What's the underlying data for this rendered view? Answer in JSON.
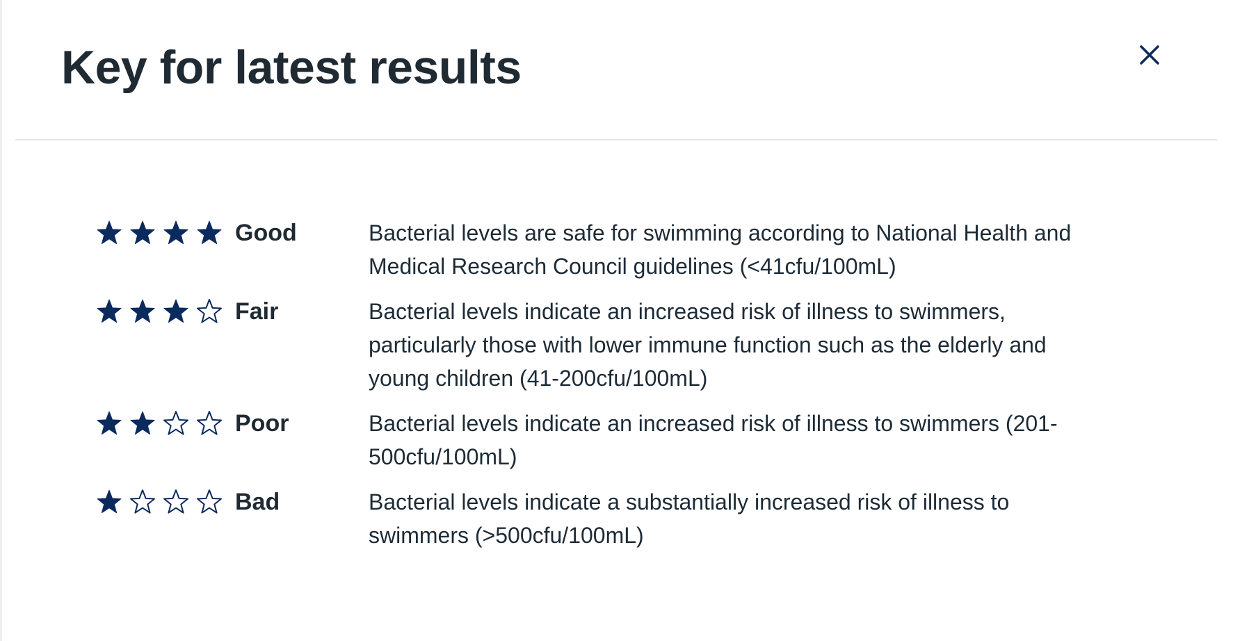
{
  "modal": {
    "title": "Key for latest results",
    "close_icon": "close-icon"
  },
  "colors": {
    "star": "#0b2a5e",
    "text": "#1d2b36"
  },
  "ratings": [
    {
      "label": "Good",
      "stars": 4,
      "max_stars": 4,
      "description": "Bacterial levels are safe for swimming according to National Health and Medical Research Council guidelines (<41cfu/100mL)"
    },
    {
      "label": "Fair",
      "stars": 3,
      "max_stars": 4,
      "description": "Bacterial levels indicate an increased risk of illness to swimmers, particularly those with lower immune function such as the elderly and young children (41-200cfu/100mL)"
    },
    {
      "label": "Poor",
      "stars": 2,
      "max_stars": 4,
      "description": "Bacterial levels indicate an increased risk of illness to swimmers (201-500cfu/100mL)"
    },
    {
      "label": "Bad",
      "stars": 1,
      "max_stars": 4,
      "description": "Bacterial levels indicate a substantially increased risk of illness to swimmers (>500cfu/100mL)"
    }
  ]
}
